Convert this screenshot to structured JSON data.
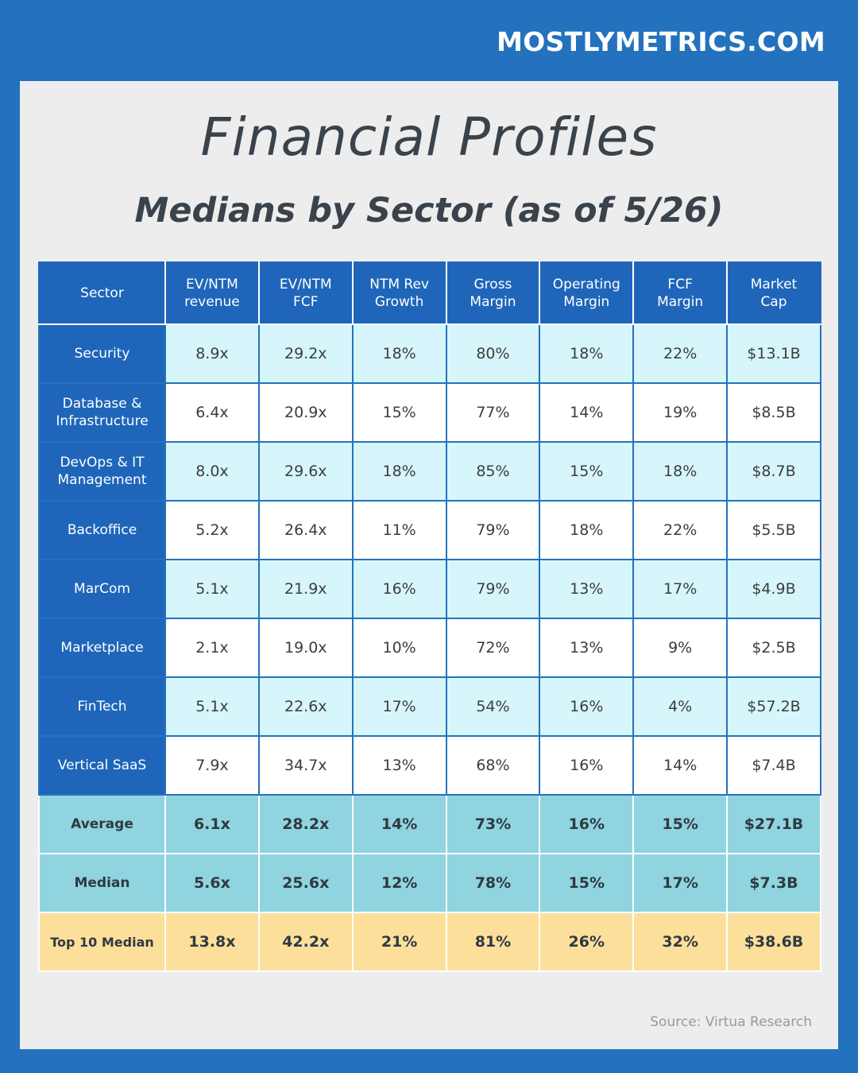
{
  "brand": "MOSTLYMETRICS.COM",
  "title": "Financial Profiles",
  "subtitle": "Medians by Sector (as of 5/26)",
  "table": {
    "headers": [
      [
        "Sector"
      ],
      [
        "EV/NTM",
        "revenue"
      ],
      [
        "EV/NTM",
        "FCF"
      ],
      [
        "NTM Rev",
        "Growth"
      ],
      [
        "Gross",
        "Margin"
      ],
      [
        "Operating",
        "Margin"
      ],
      [
        "FCF",
        "Margin"
      ],
      [
        "Market",
        "Cap"
      ]
    ],
    "rows": [
      {
        "sector": [
          "Security"
        ],
        "values": [
          "8.9x",
          "29.2x",
          "18%",
          "80%",
          "18%",
          "22%",
          "$13.1B"
        ]
      },
      {
        "sector": [
          "Database &",
          "Infrastructure"
        ],
        "values": [
          "6.4x",
          "20.9x",
          "15%",
          "77%",
          "14%",
          "19%",
          "$8.5B"
        ]
      },
      {
        "sector": [
          "DevOps & IT",
          "Management"
        ],
        "values": [
          "8.0x",
          "29.6x",
          "18%",
          "85%",
          "15%",
          "18%",
          "$8.7B"
        ]
      },
      {
        "sector": [
          "Backoffice"
        ],
        "values": [
          "5.2x",
          "26.4x",
          "11%",
          "79%",
          "18%",
          "22%",
          "$5.5B"
        ]
      },
      {
        "sector": [
          "MarCom"
        ],
        "values": [
          "5.1x",
          "21.9x",
          "16%",
          "79%",
          "13%",
          "17%",
          "$4.9B"
        ]
      },
      {
        "sector": [
          "Marketplace"
        ],
        "values": [
          "2.1x",
          "19.0x",
          "10%",
          "72%",
          "13%",
          "9%",
          "$2.5B"
        ]
      },
      {
        "sector": [
          "FinTech"
        ],
        "values": [
          "5.1x",
          "22.6x",
          "17%",
          "54%",
          "16%",
          "4%",
          "$57.2B"
        ]
      },
      {
        "sector": [
          "Vertical SaaS"
        ],
        "values": [
          "7.9x",
          "34.7x",
          "13%",
          "68%",
          "16%",
          "14%",
          "$7.4B"
        ]
      }
    ],
    "summary": [
      {
        "label": "Average",
        "values": [
          "6.1x",
          "28.2x",
          "14%",
          "73%",
          "16%",
          "15%",
          "$27.1B"
        ]
      },
      {
        "label": "Median",
        "values": [
          "5.6x",
          "25.6x",
          "12%",
          "78%",
          "15%",
          "17%",
          "$7.3B"
        ]
      }
    ],
    "top": {
      "label": "Top 10 Median",
      "values": [
        "13.8x",
        "42.2x",
        "21%",
        "81%",
        "26%",
        "32%",
        "$38.6B"
      ]
    }
  },
  "source": "Source: Virtua Research",
  "colors": {
    "background": "#2472bd",
    "header": "#1f66ba",
    "row_light_cyan": "#d6f6fc",
    "row_white": "#ffffff",
    "summary": "#90d4e0",
    "top_row": "#fddf9c",
    "title_text": "#3a434b"
  }
}
